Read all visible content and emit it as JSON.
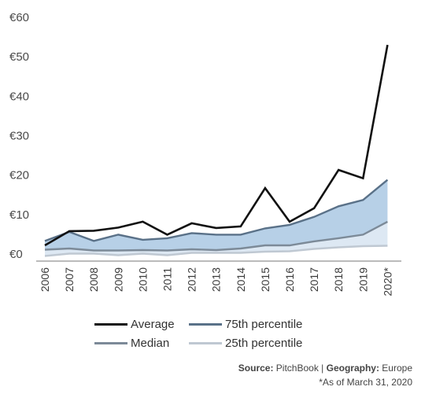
{
  "chart_data": {
    "type": "line",
    "categories": [
      "2006",
      "2007",
      "2008",
      "2009",
      "2010",
      "2011",
      "2012",
      "2013",
      "2014",
      "2015",
      "2016",
      "2017",
      "2018",
      "2019",
      "2020*"
    ],
    "y_ticks": [
      "€0",
      "€10",
      "€20",
      "€30",
      "€40",
      "€50",
      "€60"
    ],
    "ylim": [
      0,
      60
    ],
    "grid": false,
    "legend_position": "bottom",
    "series": [
      {
        "name": "Average",
        "color": "#111111",
        "values": [
          2.2,
          5.8,
          5.9,
          6.7,
          8.2,
          4.9,
          7.8,
          6.6,
          7.0,
          16.7,
          8.2,
          11.6,
          21.3,
          19.2,
          53.0
        ]
      },
      {
        "name": "75th percentile",
        "color": "#5a7188",
        "values": [
          3.3,
          5.6,
          3.3,
          4.9,
          3.6,
          4.0,
          5.3,
          4.9,
          4.9,
          6.5,
          7.4,
          9.4,
          12.1,
          13.7,
          18.8
        ]
      },
      {
        "name": "Median",
        "color": "#7c8a98",
        "values": [
          1.1,
          1.4,
          0.9,
          0.9,
          1.0,
          0.9,
          1.2,
          1.0,
          1.4,
          2.2,
          2.2,
          3.2,
          4.0,
          4.9,
          8.2
        ]
      },
      {
        "name": "25th percentile",
        "color": "#bfc8d2",
        "values": [
          -0.5,
          0.1,
          0.1,
          -0.3,
          0.1,
          -0.3,
          0.3,
          0.3,
          0.3,
          0.6,
          0.7,
          1.3,
          1.7,
          2.0,
          2.1
        ]
      }
    ],
    "band_fill_upper": "#b7d0e7",
    "band_fill_lower": "#dde8f3"
  },
  "footer": {
    "source_label": "Source:",
    "source_value": " PitchBook | ",
    "geo_label": "Geography:",
    "geo_value": " Europe",
    "note": "*As of March 31, 2020"
  }
}
